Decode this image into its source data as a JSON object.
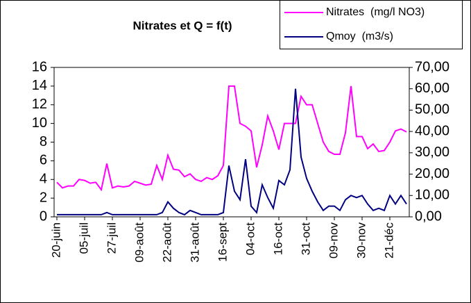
{
  "chart_data": {
    "type": "line",
    "title": "Nitrates et Q = f(t)",
    "categories": [
      "20-juin",
      null,
      null,
      null,
      null,
      "05-juil",
      null,
      null,
      null,
      null,
      "27-juil",
      null,
      null,
      null,
      null,
      "09-août",
      null,
      null,
      null,
      null,
      "22-août",
      null,
      null,
      null,
      null,
      "31-août",
      null,
      null,
      null,
      null,
      "16-sept",
      null,
      null,
      null,
      null,
      "04-oct",
      null,
      null,
      null,
      null,
      "16-oct",
      null,
      null,
      null,
      null,
      "31-oct",
      null,
      null,
      null,
      null,
      "09-nov",
      null,
      null,
      null,
      null,
      "30-nov",
      null,
      null,
      null,
      null,
      "21-déc",
      null,
      null,
      null
    ],
    "series": [
      {
        "name": "Nitrates  (mg/l NO3)",
        "color": "#ff00ff",
        "values": [
          3.7,
          3.1,
          3.3,
          3.3,
          4.0,
          3.9,
          3.6,
          3.7,
          2.9,
          5.7,
          3.1,
          3.3,
          3.2,
          3.3,
          3.8,
          3.6,
          3.4,
          3.5,
          5.5,
          4.0,
          6.6,
          5.1,
          5.0,
          4.3,
          4.6,
          4.0,
          3.8,
          4.2,
          4.0,
          4.4,
          5.5,
          14,
          14,
          10,
          9.7,
          9.2,
          5.3,
          7.7,
          10.8,
          9.2,
          7.2,
          10,
          10,
          10,
          12.9,
          12,
          12,
          10,
          8,
          7,
          6.7,
          6.7,
          9,
          14,
          8.6,
          8.6,
          7.3,
          7.8,
          7.0,
          7.1,
          8,
          9.2,
          9.4,
          9.1
        ]
      },
      {
        "name": "Qmoy  (m3/s)",
        "color": "#000080",
        "axis": "y2",
        "values": [
          1,
          1,
          1,
          1,
          1,
          1,
          1,
          1,
          1,
          2,
          1,
          1,
          1,
          1,
          1,
          1,
          1,
          1,
          1,
          2,
          7,
          4,
          2,
          1,
          3,
          2,
          1,
          1,
          1,
          1,
          2,
          24,
          12,
          8,
          27,
          5,
          2,
          15,
          9,
          4,
          17,
          15,
          22,
          60,
          28,
          18,
          12,
          7,
          3,
          5,
          5,
          3,
          8,
          10,
          9,
          10,
          6,
          3,
          4,
          3,
          10,
          6,
          10,
          6
        ]
      }
    ],
    "ylim": [
      0,
      16
    ],
    "yticks": [
      0,
      2,
      4,
      6,
      8,
      10,
      12,
      14,
      16
    ],
    "y2lim": [
      0,
      70
    ],
    "y2ticks": [
      {
        "value": 0,
        "label": "0,00"
      },
      {
        "value": 10,
        "label": "10,00"
      },
      {
        "value": 20,
        "label": "20,00"
      },
      {
        "value": 30,
        "label": "30,00"
      },
      {
        "value": 40,
        "label": "40,00"
      },
      {
        "value": 50,
        "label": "50,00"
      },
      {
        "value": 60,
        "label": "60,00"
      },
      {
        "value": 70,
        "label": "70,00"
      }
    ],
    "grid": false
  }
}
